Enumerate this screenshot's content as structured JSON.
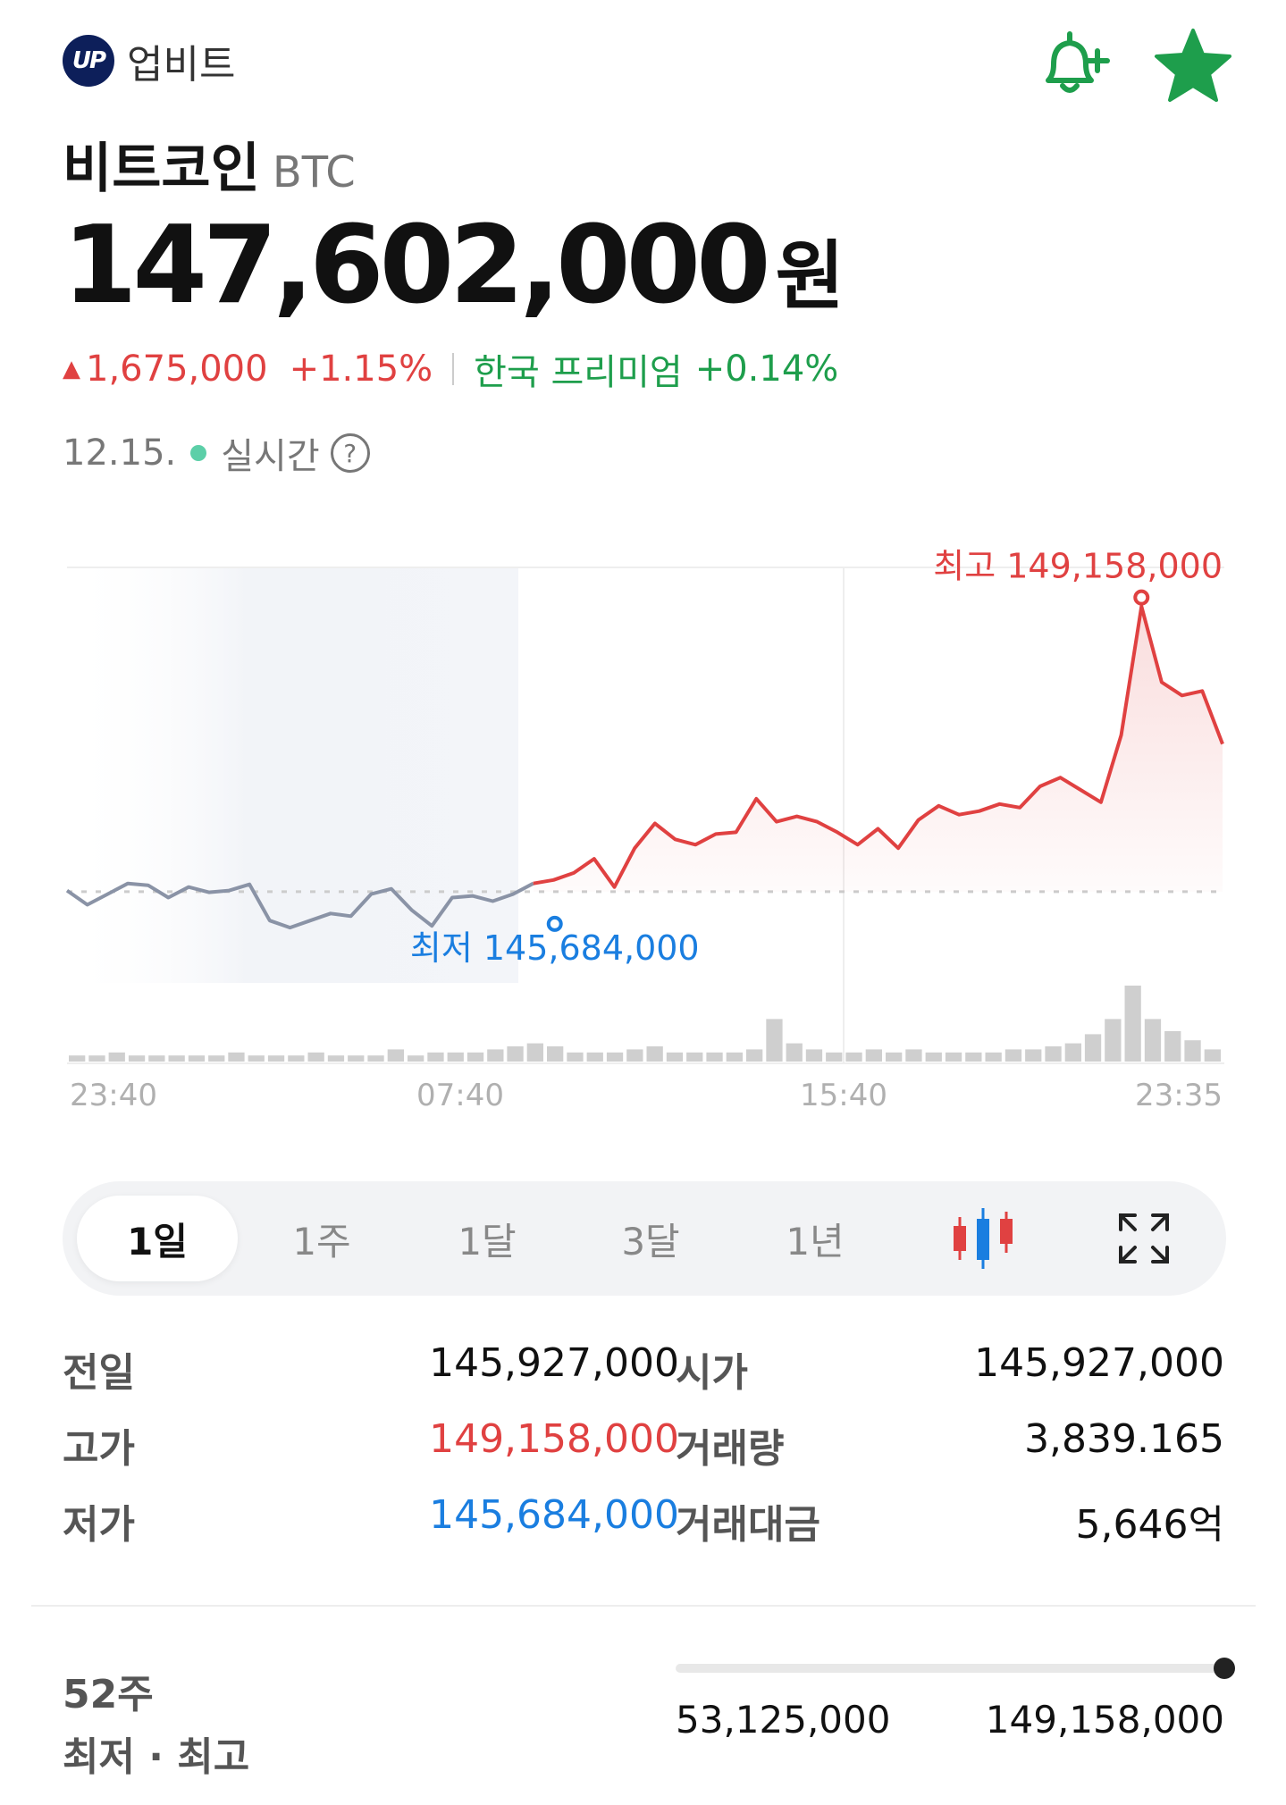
{
  "header": {
    "brand_logo_text": "UP",
    "brand_name": "업비트",
    "icons": {
      "alarm": "bell-plus-icon",
      "favorite": "star-icon"
    },
    "accent_color": "#1e9e4c"
  },
  "coin": {
    "name": "비트코인",
    "symbol": "BTC"
  },
  "price": {
    "value": "147,602,000",
    "unit": "원"
  },
  "change": {
    "arrow": "▲",
    "amount": "1,675,000",
    "percent": "+1.15%",
    "premium_label": "한국 프리미엄",
    "premium_value": "+0.14%",
    "up_color": "#e04141",
    "premium_color": "#1e9e4c"
  },
  "time": {
    "date": "12.15.",
    "status": "실시간",
    "help": "?"
  },
  "chart_data": {
    "type": "line",
    "x_ticks": [
      "23:40",
      "07:40",
      "15:40",
      "23:35"
    ],
    "high_label": "최고 149,158,000",
    "low_label": "최저 145,684,000",
    "high": 149158000,
    "low": 145684000,
    "reference": 145927000,
    "ylim": [
      145400000,
      149600000
    ],
    "up_color": "#e04141",
    "down_color": "#8a93a6",
    "low_color": "#1a7ee0",
    "series": [
      {
        "values": [
          145940000,
          145780000,
          145900000,
          146020000,
          146000000,
          145860000,
          145980000,
          145920000,
          145940000,
          146010000,
          145600000,
          145520000,
          145600000,
          145680000,
          145650000,
          145900000,
          145960000,
          145720000,
          145540000,
          145860000,
          145880000,
          145820000,
          145900000,
          146020000,
          146060000,
          146140000,
          146300000,
          145980000,
          146420000,
          146700000,
          146520000,
          146460000,
          146580000,
          146600000,
          146980000,
          146720000,
          146780000,
          146720000,
          146600000,
          146460000,
          146640000,
          146420000,
          146740000,
          146900000,
          146800000,
          146840000,
          146920000,
          146880000,
          147120000,
          147220000,
          147080000,
          146940000,
          147700000,
          149158000,
          148300000,
          148150000,
          148200000,
          147600000
        ]
      }
    ],
    "volumes": [
      2,
      2,
      3,
      2,
      2,
      2,
      2,
      2,
      3,
      2,
      2,
      2,
      3,
      2,
      2,
      2,
      4,
      2,
      3,
      3,
      3,
      4,
      5,
      6,
      5,
      3,
      3,
      3,
      4,
      5,
      3,
      3,
      3,
      3,
      4,
      14,
      6,
      4,
      3,
      3,
      4,
      3,
      4,
      3,
      3,
      3,
      3,
      4,
      4,
      5,
      6,
      9,
      14,
      25,
      14,
      10,
      7,
      4
    ]
  },
  "tabs": {
    "items": [
      "1일",
      "1주",
      "1달",
      "3달",
      "1년"
    ],
    "active": "1일",
    "candle_icon": "candlestick-icon",
    "expand_icon": "expand-icon"
  },
  "stats": {
    "prev_close_label": "전일",
    "prev_close": "145,927,000",
    "open_label": "시가",
    "open": "145,927,000",
    "high_label": "고가",
    "high": "149,158,000",
    "volume_label": "거래량",
    "volume": "3,839.165",
    "low_label": "저가",
    "low": "145,684,000",
    "trade_value_label": "거래대금",
    "trade_value": "5,646억"
  },
  "range52": {
    "title_line1": "52주",
    "title_line2": "최저 · 최고",
    "min": "53,125,000",
    "max": "149,158,000",
    "position": 1.0
  }
}
